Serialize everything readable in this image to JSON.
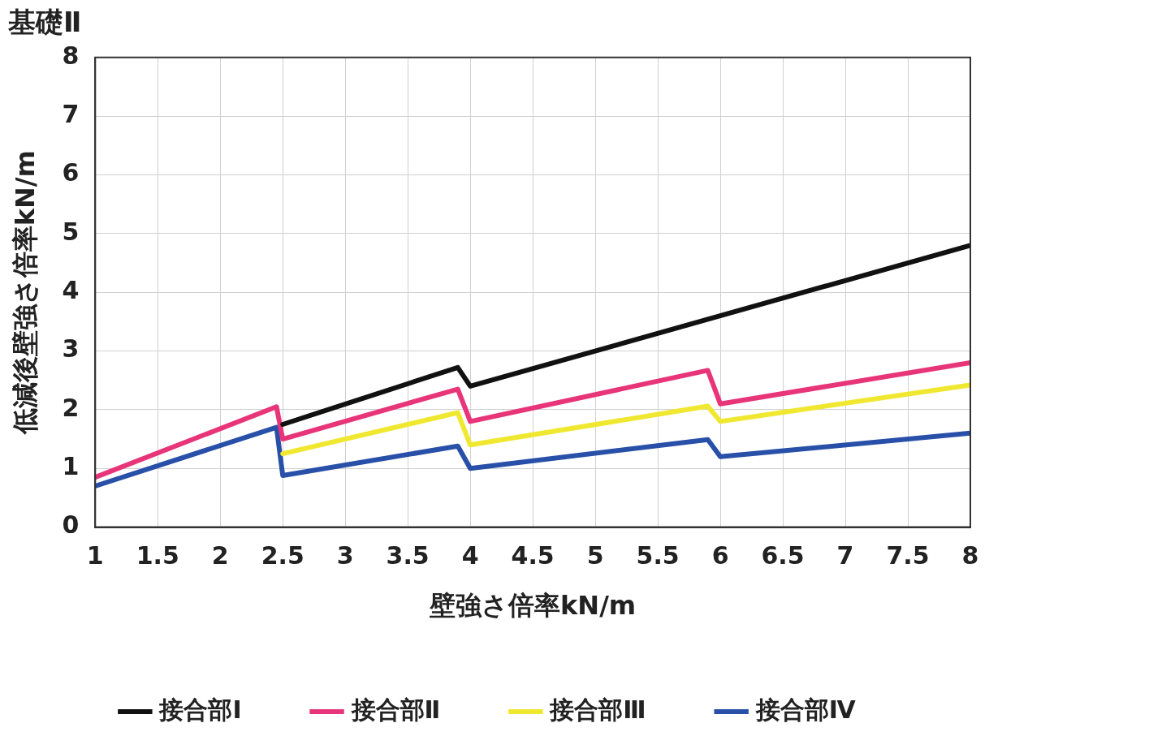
{
  "chart_data": {
    "type": "line",
    "title": "基礎Ⅱ",
    "xlabel": "壁強さ倍率kN/m",
    "ylabel": "低減後壁強さ倍率kN/m",
    "xlim": [
      1,
      8
    ],
    "xticks": [
      1,
      1.5,
      2,
      2.5,
      3,
      3.5,
      4,
      4.5,
      5,
      5.5,
      6,
      6.5,
      7,
      7.5,
      8
    ],
    "ylim": [
      0,
      8
    ],
    "yticks": [
      0,
      1,
      2,
      3,
      4,
      5,
      6,
      7,
      8
    ],
    "grid": true,
    "legend": "bottom",
    "marker": "none",
    "line_style": "solid",
    "series": [
      {
        "name": "接合部Ⅰ",
        "color": "#111111",
        "x": [
          2.5,
          3.9,
          4,
          8
        ],
        "values": [
          1.75,
          2.72,
          2.4,
          4.8
        ]
      },
      {
        "name": "接合部Ⅱ",
        "color": "#e8357a",
        "x": [
          1,
          2.45,
          2.5,
          3.9,
          4,
          5.9,
          6,
          8
        ],
        "values": [
          0.85,
          2.05,
          1.5,
          2.35,
          1.8,
          2.67,
          2.1,
          2.8
        ]
      },
      {
        "name": "接合部Ⅲ",
        "color": "#f0e830",
        "x": [
          2.5,
          3.9,
          4,
          5.9,
          6,
          8
        ],
        "values": [
          1.25,
          1.95,
          1.4,
          2.06,
          1.8,
          2.42
        ]
      },
      {
        "name": "接合部Ⅳ",
        "color": "#2850a8",
        "x": [
          1,
          2.45,
          2.5,
          3.9,
          4,
          5.9,
          6,
          8
        ],
        "values": [
          0.7,
          1.7,
          0.88,
          1.38,
          1.0,
          1.49,
          1.2,
          1.6
        ]
      }
    ]
  }
}
